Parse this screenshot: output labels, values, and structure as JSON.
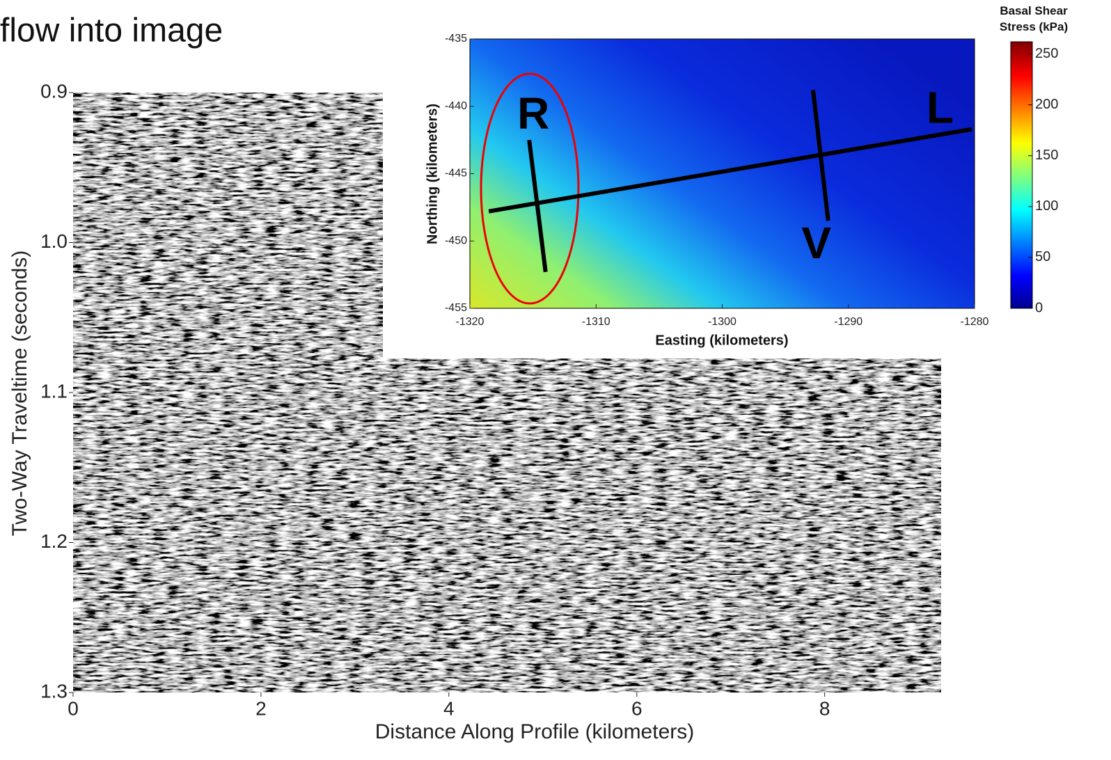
{
  "title": "flow into image",
  "chart_data": [
    {
      "type": "seismic",
      "xlabel": "Distance Along Profile (kilometers)",
      "ylabel": "Two-Way Traveltime (seconds)",
      "xlim": [
        0,
        9.24
      ],
      "ylim": [
        1.3,
        0.9
      ],
      "xticks": [
        0,
        2,
        4,
        6,
        8
      ],
      "yticks": [
        0.9,
        {
          "value": 1,
          "label": "1.0"
        },
        1.1,
        1.2,
        1.3
      ]
    },
    {
      "type": "heatmap",
      "xlabel": "Easting (kilometers)",
      "ylabel": "Northing (kilometers)",
      "xlim": [
        -1320,
        -1280
      ],
      "ylim": [
        -455,
        -435
      ],
      "xticks": [
        -1320,
        -1310,
        -1300,
        -1290,
        -1280
      ],
      "yticks": [
        -455,
        -450,
        -445,
        -440,
        -435
      ],
      "colorbar": {
        "label": "Basal Shear Stress (kPa)",
        "lim": [
          0,
          262
        ],
        "ticks": [
          0,
          50,
          100,
          150,
          200,
          250
        ]
      },
      "profiles": [
        {
          "name": "L",
          "x": [
            -1318.5,
            -1280.2
          ],
          "y": [
            -447.8,
            -441.7
          ]
        },
        {
          "name": "R",
          "x": [
            -1315.3,
            -1314.0
          ],
          "y": [
            -442.5,
            -452.3
          ]
        },
        {
          "name": "V",
          "x": [
            -1292.8,
            -1291.6
          ],
          "y": [
            -438.8,
            -448.5
          ]
        }
      ]
    }
  ]
}
